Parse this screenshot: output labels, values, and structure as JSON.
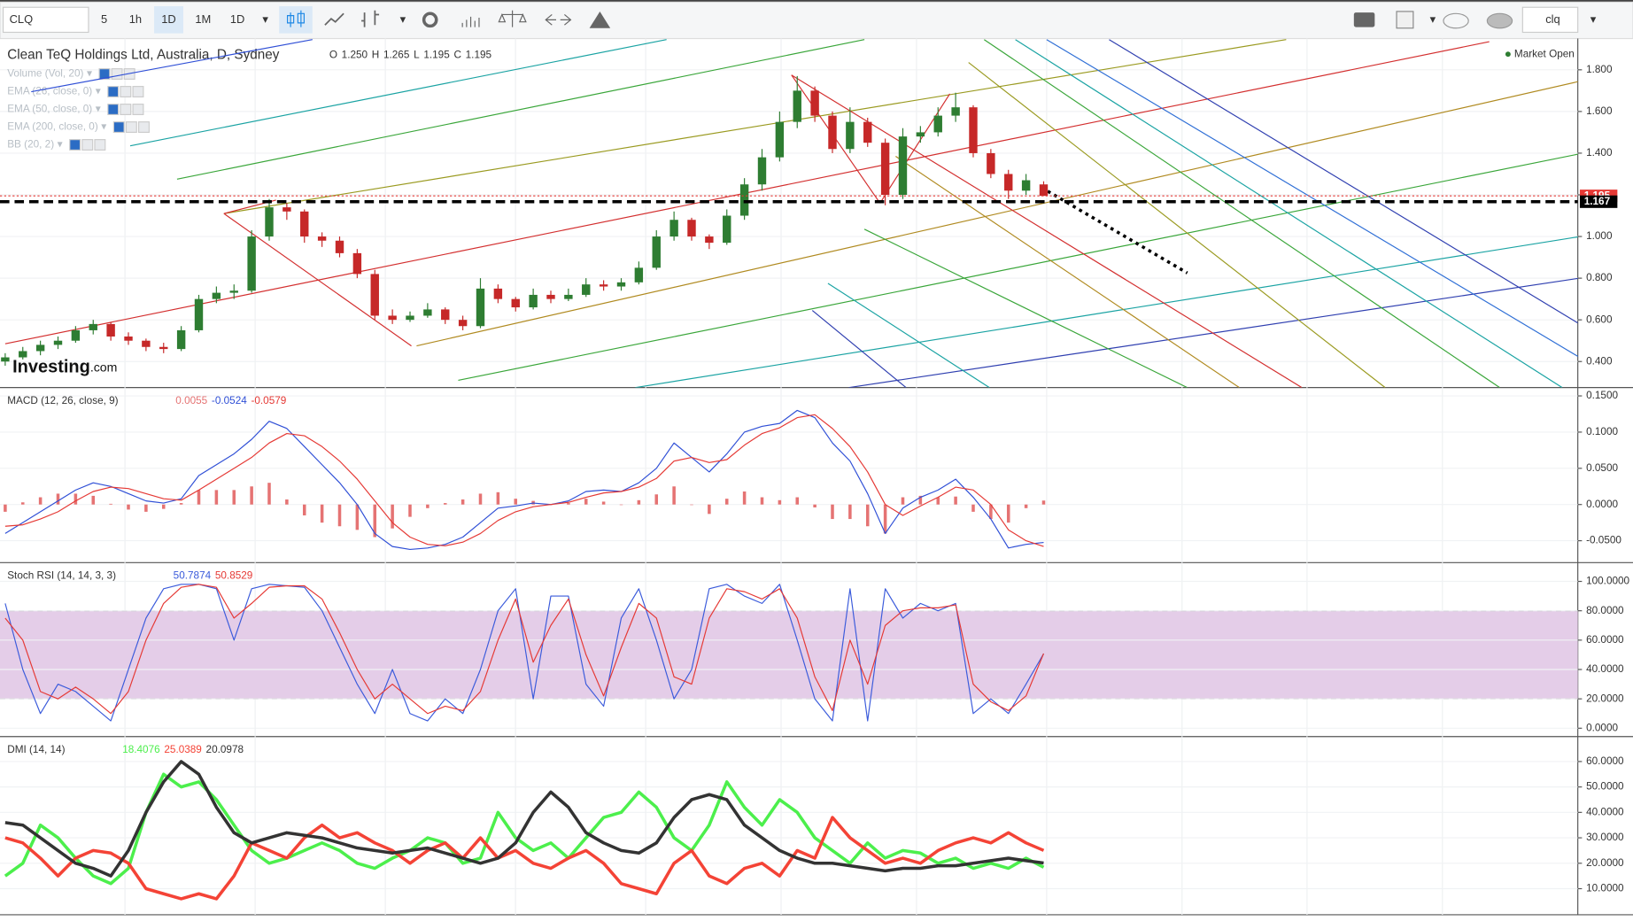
{
  "toolbar": {
    "symbol": "CLQ",
    "intervals": [
      "5",
      "1h",
      "1D",
      "1M",
      "1D"
    ],
    "search": "clq"
  },
  "chart_data": [
    {
      "type": "candlestick",
      "title": "Clean TeQ Holdings Ltd, Australia, D, Sydney",
      "ohlc_legend": [
        "O",
        "1.250",
        "H",
        "1.265",
        "L",
        "1.195",
        "C",
        "1.195"
      ],
      "indicators": [
        "Volume (Vol, 20)",
        "EMA (26, close, 0)",
        "EMA (50, close, 0)",
        "EMA (200, close, 0)",
        "BB (20, 2)"
      ],
      "status": "Market Open",
      "watermark": [
        "Investing",
        ".com"
      ],
      "up_color": "#2e7d32",
      "down_color": "#c62828",
      "candles": {
        "open": [
          0.4,
          0.42,
          0.45,
          0.48,
          0.5,
          0.55,
          0.58,
          0.52,
          0.5,
          0.47,
          0.46,
          0.55,
          0.7,
          0.73,
          0.74,
          1.0,
          1.14,
          1.12,
          1.0,
          0.98,
          0.92,
          0.82,
          0.62,
          0.6,
          0.62,
          0.65,
          0.6,
          0.57,
          0.75,
          0.7,
          0.66,
          0.72,
          0.7,
          0.72,
          0.77,
          0.76,
          0.78,
          0.85,
          1.0,
          1.08,
          1.0,
          0.97,
          1.1,
          1.25,
          1.38,
          1.55,
          1.7,
          1.58,
          1.42,
          1.55,
          1.45,
          1.2,
          1.48,
          1.5,
          1.58,
          1.62,
          1.4,
          1.3,
          1.22,
          1.25
        ],
        "high": [
          0.44,
          0.47,
          0.5,
          0.52,
          0.57,
          0.6,
          0.59,
          0.54,
          0.51,
          0.49,
          0.57,
          0.72,
          0.76,
          0.77,
          1.03,
          1.18,
          1.16,
          1.13,
          1.02,
          1.0,
          0.94,
          0.84,
          0.65,
          0.64,
          0.68,
          0.66,
          0.62,
          0.8,
          0.77,
          0.71,
          0.75,
          0.74,
          0.75,
          0.8,
          0.79,
          0.8,
          0.88,
          1.03,
          1.12,
          1.09,
          1.01,
          1.13,
          1.28,
          1.42,
          1.6,
          1.77,
          1.72,
          1.6,
          1.62,
          1.57,
          1.47,
          1.52,
          1.53,
          1.62,
          1.69,
          1.63,
          1.42,
          1.32,
          1.3,
          1.265
        ],
        "low": [
          0.38,
          0.41,
          0.43,
          0.46,
          0.49,
          0.53,
          0.5,
          0.48,
          0.45,
          0.44,
          0.45,
          0.54,
          0.68,
          0.7,
          0.73,
          0.98,
          1.08,
          0.97,
          0.95,
          0.9,
          0.8,
          0.6,
          0.58,
          0.59,
          0.61,
          0.58,
          0.55,
          0.56,
          0.68,
          0.64,
          0.65,
          0.68,
          0.69,
          0.71,
          0.74,
          0.74,
          0.77,
          0.84,
          0.98,
          0.98,
          0.94,
          0.96,
          1.08,
          1.22,
          1.36,
          1.52,
          1.55,
          1.4,
          1.4,
          1.43,
          1.15,
          1.18,
          1.45,
          1.48,
          1.55,
          1.38,
          1.28,
          1.18,
          1.2,
          1.195
        ],
        "close": [
          0.42,
          0.45,
          0.48,
          0.5,
          0.55,
          0.58,
          0.52,
          0.5,
          0.47,
          0.46,
          0.55,
          0.7,
          0.73,
          0.74,
          1.0,
          1.14,
          1.12,
          1.0,
          0.98,
          0.92,
          0.82,
          0.62,
          0.6,
          0.62,
          0.65,
          0.6,
          0.57,
          0.75,
          0.7,
          0.66,
          0.72,
          0.7,
          0.72,
          0.77,
          0.76,
          0.78,
          0.85,
          1.0,
          1.08,
          1.0,
          0.97,
          1.1,
          1.25,
          1.38,
          1.55,
          1.7,
          1.58,
          1.42,
          1.55,
          1.45,
          1.2,
          1.48,
          1.5,
          1.58,
          1.62,
          1.4,
          1.3,
          1.22,
          1.27,
          1.195
        ]
      },
      "price_labels": [
        {
          "value": 1.195,
          "color": "#e53935"
        },
        {
          "value": 1.167,
          "color": "#000000"
        }
      ],
      "ylim": [
        0.275,
        1.95
      ],
      "yticks": [
        {
          "value": 1.8,
          "label": "1.800"
        },
        {
          "value": 1.6,
          "label": "1.600"
        },
        {
          "value": 1.4,
          "label": "1.400"
        },
        {
          "value": 1.2,
          "label": "1.200"
        },
        {
          "value": 1.0,
          "label": "1.000"
        },
        {
          "value": 0.8,
          "label": "0.800"
        },
        {
          "value": 0.6,
          "label": "0.600"
        },
        {
          "value": 0.4,
          "label": "0.400"
        }
      ]
    },
    {
      "type": "line",
      "title": "MACD (12, 26, close, 9)",
      "series": [
        {
          "type": "bar",
          "color": "#e57373",
          "legend_value": "0.0055",
          "values": [
            -0.01,
            0.003,
            0.01,
            0.015,
            0.015,
            0.012,
            0.001,
            -0.007,
            -0.01,
            -0.006,
            0.002,
            0.02,
            0.02,
            0.02,
            0.025,
            0.03,
            0.007,
            -0.015,
            -0.025,
            -0.03,
            -0.035,
            -0.045,
            -0.033,
            -0.017,
            -0.005,
            0.002,
            0.007,
            0.015,
            0.017,
            0.008,
            0.005,
            0.0,
            0.002,
            0.008,
            0.004,
            0.0,
            0.006,
            0.014,
            0.025,
            0.0,
            -0.013,
            0.008,
            0.018,
            0.01,
            0.006,
            0.01,
            -0.004,
            -0.02,
            -0.02,
            -0.03,
            -0.04,
            0.01,
            0.012,
            0.01,
            0.011,
            -0.01,
            -0.02,
            -0.025,
            -0.005,
            0.0055
          ]
        },
        {
          "type": "line",
          "color": "#2f4fd6",
          "legend_value": "-0.0524",
          "values": [
            -0.04,
            -0.025,
            -0.01,
            0.005,
            0.02,
            0.03,
            0.025,
            0.015,
            0.005,
            0.002,
            0.008,
            0.04,
            0.055,
            0.07,
            0.09,
            0.115,
            0.105,
            0.08,
            0.055,
            0.03,
            0.0,
            -0.04,
            -0.058,
            -0.062,
            -0.06,
            -0.055,
            -0.045,
            -0.025,
            -0.005,
            -0.002,
            0.002,
            0.0,
            0.005,
            0.018,
            0.02,
            0.018,
            0.03,
            0.05,
            0.085,
            0.065,
            0.045,
            0.07,
            0.1,
            0.108,
            0.112,
            0.13,
            0.12,
            0.085,
            0.06,
            0.015,
            -0.04,
            -0.005,
            0.01,
            0.02,
            0.035,
            0.01,
            -0.02,
            -0.06,
            -0.055,
            -0.0524
          ]
        },
        {
          "type": "line",
          "color": "#e53935",
          "legend_value": "-0.0579",
          "values": [
            -0.03,
            -0.028,
            -0.02,
            -0.01,
            0.005,
            0.018,
            0.024,
            0.022,
            0.015,
            0.008,
            0.006,
            0.02,
            0.035,
            0.05,
            0.065,
            0.085,
            0.098,
            0.095,
            0.08,
            0.06,
            0.035,
            0.005,
            -0.025,
            -0.045,
            -0.055,
            -0.057,
            -0.052,
            -0.04,
            -0.022,
            -0.01,
            -0.003,
            0.0,
            0.003,
            0.01,
            0.016,
            0.018,
            0.024,
            0.036,
            0.06,
            0.065,
            0.058,
            0.062,
            0.082,
            0.098,
            0.106,
            0.12,
            0.124,
            0.105,
            0.08,
            0.045,
            0.0,
            -0.015,
            -0.002,
            0.01,
            0.024,
            0.02,
            0.0,
            -0.035,
            -0.05,
            -0.0579
          ]
        }
      ],
      "ylim": [
        -0.0802,
        0.1615
      ],
      "yticks": [
        {
          "value": 0.15,
          "label": "0.1500"
        },
        {
          "value": 0.1,
          "label": "0.1000"
        },
        {
          "value": 0.05,
          "label": "0.0500"
        },
        {
          "value": 0,
          "label": "0.0000"
        },
        {
          "value": -0.05,
          "label": "-0.0500"
        }
      ]
    },
    {
      "type": "line",
      "title": "Stoch RSI (14, 14, 3, 3)",
      "band": [
        20,
        80
      ],
      "band_color": "#e4cde8",
      "series": [
        {
          "type": "line",
          "color": "#3b5bdb",
          "legend_value": "50.7874",
          "values": [
            85,
            40,
            10,
            30,
            25,
            15,
            5,
            40,
            75,
            95,
            98,
            98,
            95,
            60,
            95,
            98,
            97,
            96,
            80,
            55,
            30,
            10,
            40,
            10,
            5,
            20,
            10,
            40,
            80,
            95,
            20,
            90,
            90,
            30,
            15,
            75,
            95,
            60,
            20,
            40,
            95,
            98,
            90,
            85,
            98,
            60,
            20,
            5,
            95,
            5,
            95,
            75,
            85,
            80,
            85,
            10,
            20,
            10,
            30,
            50.7874
          ]
        },
        {
          "type": "line",
          "color": "#e53935",
          "legend_value": "50.8529",
          "values": [
            75,
            60,
            25,
            20,
            28,
            20,
            10,
            25,
            60,
            85,
            96,
            98,
            96,
            75,
            85,
            96,
            97,
            97,
            88,
            65,
            40,
            20,
            30,
            20,
            10,
            15,
            12,
            25,
            60,
            88,
            45,
            70,
            88,
            50,
            22,
            55,
            85,
            75,
            35,
            30,
            75,
            95,
            93,
            88,
            95,
            75,
            35,
            12,
            60,
            30,
            70,
            80,
            82,
            82,
            84,
            30,
            18,
            12,
            22,
            50.8529
          ]
        }
      ],
      "ylim": [
        -5.7,
        112.8
      ],
      "yticks": [
        {
          "value": 100,
          "label": "100.0000"
        },
        {
          "value": 80,
          "label": "80.0000"
        },
        {
          "value": 60,
          "label": "60.0000"
        },
        {
          "value": 40,
          "label": "40.0000"
        },
        {
          "value": 20,
          "label": "20.0000"
        },
        {
          "value": 0,
          "label": "0.0000"
        }
      ]
    },
    {
      "type": "line",
      "title": "DMI (14, 14)",
      "series": [
        {
          "type": "line",
          "color": "#4cef4c",
          "width": 3,
          "legend_value": "18.4076",
          "values": [
            15,
            20,
            35,
            30,
            22,
            15,
            12,
            18,
            40,
            55,
            50,
            52,
            45,
            35,
            25,
            20,
            22,
            25,
            28,
            25,
            20,
            18,
            22,
            25,
            30,
            28,
            20,
            22,
            40,
            30,
            25,
            28,
            22,
            30,
            38,
            40,
            48,
            42,
            30,
            25,
            35,
            52,
            42,
            35,
            45,
            40,
            30,
            25,
            20,
            28,
            22,
            25,
            24,
            20,
            22,
            18,
            20,
            18,
            22,
            18.4076
          ]
        },
        {
          "type": "line",
          "color": "#f44336",
          "width": 3,
          "legend_value": "25.0389",
          "values": [
            30,
            28,
            22,
            15,
            22,
            25,
            24,
            20,
            10,
            8,
            6,
            8,
            6,
            15,
            28,
            25,
            22,
            30,
            35,
            30,
            32,
            28,
            25,
            20,
            25,
            28,
            22,
            30,
            22,
            25,
            20,
            18,
            22,
            25,
            20,
            12,
            10,
            8,
            20,
            25,
            15,
            12,
            18,
            20,
            15,
            25,
            22,
            38,
            30,
            25,
            20,
            22,
            20,
            25,
            28,
            30,
            28,
            32,
            28,
            25.0389
          ]
        },
        {
          "type": "line",
          "color": "#333333",
          "width": 3,
          "legend_value": "20.0978",
          "values": [
            36,
            35,
            30,
            25,
            20,
            18,
            15,
            25,
            40,
            52,
            60,
            55,
            42,
            32,
            28,
            30,
            32,
            31,
            30,
            28,
            26,
            25,
            24,
            25,
            26,
            24,
            22,
            20,
            22,
            28,
            40,
            48,
            42,
            32,
            28,
            25,
            24,
            28,
            38,
            45,
            47,
            45,
            35,
            30,
            25,
            22,
            20,
            20,
            19,
            18,
            17,
            18,
            18,
            19,
            19,
            20,
            21,
            22,
            21,
            20.0978
          ]
        }
      ],
      "ylim": [
        -0.25,
        69.8
      ],
      "yticks": [
        {
          "value": 60,
          "label": "60.0000"
        },
        {
          "value": 50,
          "label": "50.0000"
        },
        {
          "value": 40,
          "label": "40.0000"
        },
        {
          "value": 30,
          "label": "30.0000"
        },
        {
          "value": 20,
          "label": "20.0000"
        },
        {
          "value": 10,
          "label": "10.0000"
        }
      ]
    }
  ]
}
